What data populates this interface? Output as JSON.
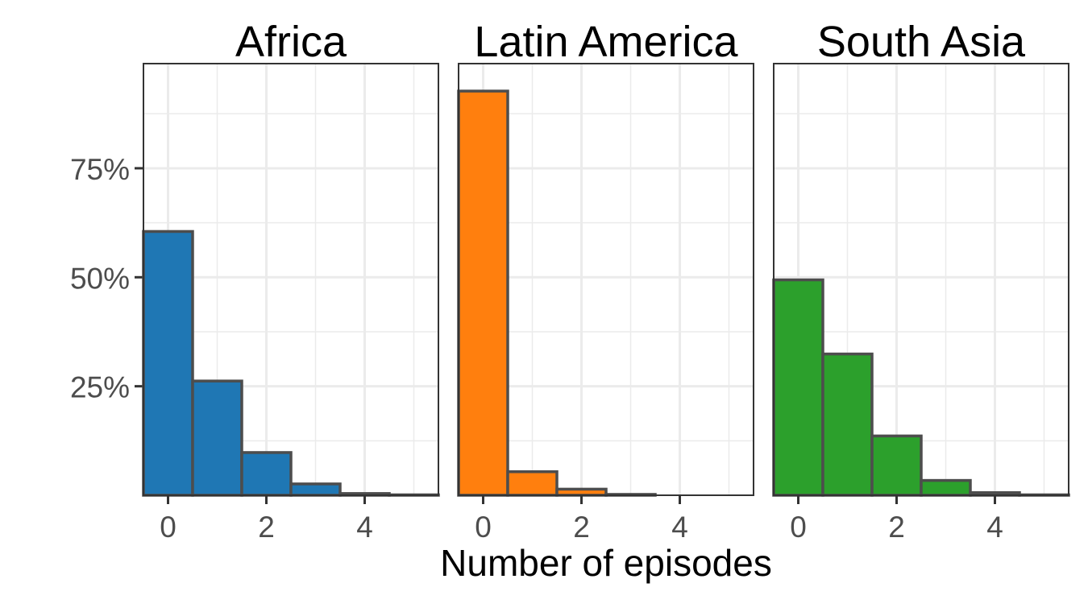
{
  "chart_data": {
    "type": "bar",
    "layout": "faceted histogram",
    "xlabel": "Number of episodes",
    "ylabel": "",
    "x": [
      0,
      1,
      2,
      3,
      4,
      5
    ],
    "xticks": [
      0,
      2,
      4
    ],
    "xlim": [
      -0.5,
      5.5
    ],
    "yticks": [
      "25%",
      "50%",
      "75%"
    ],
    "ylim": [
      0,
      1
    ],
    "grid": true,
    "legend": "none",
    "panels": [
      {
        "title": "Africa",
        "color": "#1F77B4",
        "values": [
          0.605,
          0.262,
          0.098,
          0.026,
          0.004,
          0.001
        ]
      },
      {
        "title": "Latin America",
        "color": "#FF7F0E",
        "values": [
          0.927,
          0.054,
          0.014,
          0.002,
          0.0,
          0.0
        ]
      },
      {
        "title": "South Asia",
        "color": "#2CA02C",
        "values": [
          0.494,
          0.324,
          0.136,
          0.034,
          0.006,
          0.001
        ]
      }
    ]
  }
}
